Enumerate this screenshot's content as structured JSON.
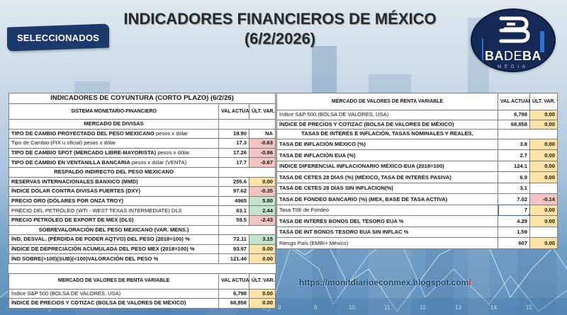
{
  "header": {
    "badge": "SELECCIONADOS",
    "title_line1": "INDICADORES FINANCIEROS DE MÉXICO",
    "title_line2": "(6/2/2026)",
    "logo": {
      "brand_bold1": "BA",
      "brand_thin": "DE",
      "brand_bold2": "BA",
      "sub": "MÉDIA"
    }
  },
  "left_table": {
    "title": "INDICADORES DE COYUNTURA (CORTO PLAZO) (6/2/26)",
    "col_headers": {
      "section": "SISTEMA MONETARIO-FINANCIERO",
      "val": "VAL ACTUAL",
      "var": "ÚLT. VAR. %"
    },
    "sections": [
      {
        "name": "MERCADO DE DIVISAS",
        "rows": [
          {
            "label": "TIPO DE CAMBIO PROYECTADO DEL PESO MEXICANO",
            "unit": " pesos x dólar",
            "value": "18.90",
            "var": "NA",
            "status": "na"
          },
          {
            "label": "Tipo de Cambio (FIX u oficial) pesos x dólar",
            "unit": "",
            "value": "17.3",
            "var": "-0.63",
            "status": "neg",
            "normal": true
          },
          {
            "label": "TIPO DE CAMBIO SPOT (MERCADO LIBRE-MAYORISTA)",
            "unit": " pesos x dólar.",
            "value": "17.26",
            "var": "-0.86",
            "status": "neg"
          },
          {
            "label": "TIPO DE CAMBIO EN VENTANILLA BANCARIA",
            "unit": " pesos x dólar (VENTA)",
            "value": "17.7",
            "var": "-0.67",
            "status": "neg"
          }
        ]
      },
      {
        "name": "RESPALDO INDIRECTO DEL PESO MEXICANO",
        "rows": [
          {
            "label": "RESERVAS INTERNACIONALES BANXICO (MMD)",
            "value": "255.6",
            "var": "0.00",
            "status": "zero"
          },
          {
            "label": "ÍNDICE DÓLAR CONTRA DIVISAS FUERTES (DXY)",
            "value": "97.62",
            "var": "-0.35",
            "status": "neg"
          },
          {
            "label": "PRECIO ORO (DÓLARES POR ONZA TROY)",
            "value": "4965",
            "var": "5.80",
            "status": "pos"
          },
          {
            "label": "PRECIO DEL PETRÓLEO (WTI - WEST TEXAS INTERMEDIATE) DLS",
            "value": "63.1",
            "var": "2.44",
            "status": "pos",
            "normal": true
          },
          {
            "label": "PRECIO PETRÓLEO DE EXPORT DE MEX (DLS)",
            "value": "59.5",
            "var": "-2.43",
            "status": "neg"
          }
        ]
      },
      {
        "name": "SOBREVALORACIÓN DEL PESO MEXICANO (VAR. MENS.)",
        "rows": [
          {
            "label": "ÍND. DESVAL. (PÉRDIDA DE PODER AQTVO) DEL PESO (2018=100) %",
            "value": "72.11",
            "var": "3.15",
            "status": "pos"
          },
          {
            "label": "ÍNDICE DE DEPRECIACIÓN ACUMULADA DEL PESO MEX (2018=100) %",
            "value": "93.97",
            "var": "0.00",
            "status": "zero"
          },
          {
            "label": "ÍND SOBRE(>100)(SUB)(<100)VALORACIÓN DEL PESO  %",
            "value": "121.46",
            "var": "0.00",
            "status": "zero"
          }
        ]
      }
    ],
    "equity": {
      "header": "MERCADO DE VALORES DE RENTA VARIABLE",
      "val_header": "VAL ACTUAL",
      "var_header": "ÚLT. VAR. %",
      "rows": [
        {
          "label": "Índice S&P 500 (BOLSA DE VALORES, USA)",
          "value": "6,798",
          "var": "0.00",
          "status": "zero",
          "normal": true
        },
        {
          "label": "ÍNDICE DE PRECIOS Y COTIZAC (BOLSA DE VALORES DE MÉXICO)",
          "value": "68,858",
          "var": "0.00",
          "status": "zero"
        }
      ]
    }
  },
  "right_table": {
    "header": "MERCADO DE VALORES DE RENTA VARIABLE",
    "val_header": "VAL ACTUAL",
    "var_header": "ÚLT. VAR. %",
    "equity_rows": [
      {
        "label": "Índice S&P 500 (BOLSA DE VALORES, USA)",
        "value": "6,798",
        "var": "0.00",
        "status": "zero",
        "normal": true
      },
      {
        "label": "ÍNDICE DE PRECIOS Y COTIZAC (BOLSA DE VALORES DE MÉXICO)",
        "value": "68,858",
        "var": "0.00",
        "status": "zero"
      }
    ],
    "rates_section": "TASAS DE INTERÉS E INFLACIÓN, TASAS NOMINALES Y REALES,",
    "rate_rows": [
      {
        "label": "TASA DE INFLACIÓN MÉXICO (%)",
        "value": "3.8",
        "var": "0.00",
        "status": "zero"
      },
      {
        "label": "TASA DE INFLACIÓN EUA (%)",
        "value": "2.7",
        "var": "0.00",
        "status": "zero"
      },
      {
        "label": "INDICE DIFERENCIAL INFLACIONARIO MÉXICO-EUA (2018=100)",
        "value": "124.1",
        "var": "0.00",
        "status": "zero"
      },
      {
        "label": "TASA DE CETES 28 DÍAS (%) (MÉXICO, TASA DE INTERÉS PASIVA)",
        "value": "6.9",
        "var": "0.00",
        "status": "zero"
      },
      {
        "label": "TASA DE CETES 28 DÍAS SIN INFLACION(%)",
        "value": "3.1",
        "var": "",
        "status": "empty"
      },
      {
        "label": "TASA DE FONDEO BANCARIO (%) (MEX, BASE DE TASA ACTIVA)",
        "value": "7.02",
        "var": "-0.14",
        "status": "neg"
      },
      {
        "label": "Tasa TIIE de Fondeo",
        "value": "7",
        "var": "0.00",
        "status": "zero",
        "normal": true,
        "selected": true
      },
      {
        "label": "TASA DE INTERÉS BONOS DEL TESORO EUA %",
        "value": "4.29",
        "var": "0.00",
        "status": "zero"
      },
      {
        "label": "TASA DE INT BONOS TESORO EUA SIN INFLAC %",
        "value": "1.59",
        "var": "",
        "status": "empty"
      },
      {
        "label": "Riesgo País (EMBI+ México)",
        "value": "607",
        "var": "0.00",
        "status": "zero",
        "normal": true
      }
    ]
  },
  "footer": {
    "url": "https://monitdiarioeconmex.blogspot.com",
    "url_slash": "/"
  },
  "background_axis": [
    "8",
    "9",
    "10",
    "11",
    "12",
    "13",
    "14",
    "15"
  ],
  "colors": {
    "neg": "#f2c4c4",
    "pos": "#c4e4cc",
    "zero": "#fde3a7",
    "badge": "#1b3a6b",
    "logo_bg": "#142a55",
    "url": "#1e4a6e"
  }
}
